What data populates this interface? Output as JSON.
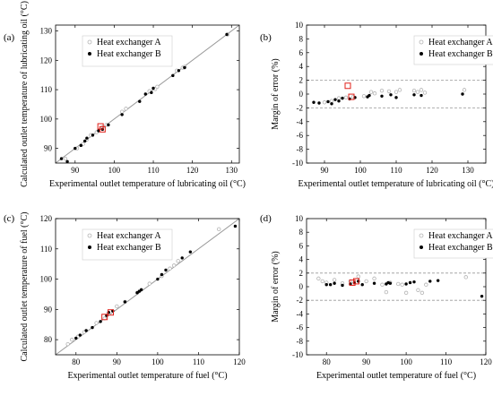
{
  "colors": {
    "series_a": "#b3b3b3",
    "series_b": "#000000",
    "highlight": "#e0201a",
    "reference": "#999999"
  },
  "chart_data": [
    {
      "type": "scatter",
      "panel_label": "(a)",
      "xlabel": "Experimental outlet temperature of lubricating oil (°C)",
      "ylabel": "Calculated outlet temperature of lubricating oil (°C)",
      "xlim": [
        85,
        132
      ],
      "ylim": [
        85,
        132
      ],
      "xticks": [
        90,
        100,
        110,
        120,
        130
      ],
      "yticks": [
        90,
        100,
        110,
        120,
        130
      ],
      "grid": false,
      "legend": "top-left",
      "reference_line": "y=x",
      "series": [
        {
          "name": "Heat exchanger A",
          "marker": "open-circle",
          "points": [
            [
              87.5,
              86.5
            ],
            [
              90.5,
              90
            ],
            [
              92,
              91.5
            ],
            [
              93,
              93
            ],
            [
              94,
              94.5
            ],
            [
              95.5,
              95.5
            ],
            [
              97,
              97.2
            ],
            [
              98,
              98
            ],
            [
              102,
              102.5
            ],
            [
              103,
              103.5
            ],
            [
              109,
              109.5
            ],
            [
              110.5,
              110.2
            ],
            [
              111,
              111
            ],
            [
              116,
              116.5
            ],
            [
              117.5,
              117.5
            ],
            [
              118,
              117.8
            ],
            [
              129,
              128.8
            ]
          ]
        },
        {
          "name": "Heat exchanger B",
          "marker": "filled-circle",
          "points": [
            [
              86.5,
              86.5
            ],
            [
              88,
              85.5
            ],
            [
              90,
              90
            ],
            [
              91.5,
              91
            ],
            [
              92.5,
              92.5
            ],
            [
              93,
              93.5
            ],
            [
              94.5,
              94.5
            ],
            [
              96,
              96
            ],
            [
              97,
              96.5
            ],
            [
              98.5,
              98
            ],
            [
              102,
              101.5
            ],
            [
              106.5,
              106
            ],
            [
              108,
              108.5
            ],
            [
              109.5,
              109
            ],
            [
              110,
              110.5
            ],
            [
              115,
              114.8
            ],
            [
              116.5,
              116.5
            ],
            [
              118,
              117.5
            ],
            [
              128.8,
              128.8
            ]
          ]
        }
      ],
      "highlights": [
        [
          96.5,
          97.5
        ],
        [
          97,
          96.5
        ]
      ]
    },
    {
      "type": "scatter",
      "panel_label": "(b)",
      "xlabel": "Experimental outlet temperature of lubricating oil (°C)",
      "ylabel": "Margin of error (%)",
      "xlim": [
        85,
        135
      ],
      "ylim": [
        -10,
        10
      ],
      "xticks": [
        90,
        100,
        110,
        120,
        130
      ],
      "yticks": [
        -10,
        -8,
        -6,
        -4,
        -2,
        0,
        2,
        4,
        6,
        8,
        10
      ],
      "grid": false,
      "legend": "top-right",
      "reference_lines": [
        2,
        -2
      ],
      "series": [
        {
          "name": "Heat exchanger A",
          "marker": "open-circle",
          "points": [
            [
              90,
              -1.2
            ],
            [
              92,
              -1
            ],
            [
              94,
              -0.6
            ],
            [
              96,
              -0.5
            ],
            [
              98,
              -0.4
            ],
            [
              101,
              -0.3
            ],
            [
              103,
              0.3
            ],
            [
              104,
              0.1
            ],
            [
              106,
              0.5
            ],
            [
              108,
              0.4
            ],
            [
              110,
              0.3
            ],
            [
              111,
              0.6
            ],
            [
              115,
              0.5
            ],
            [
              116,
              0.3
            ],
            [
              117,
              0.6
            ],
            [
              118,
              0.2
            ],
            [
              129,
              0.6
            ]
          ]
        },
        {
          "name": "Heat exchanger B",
          "marker": "filled-circle",
          "points": [
            [
              87,
              -1.2
            ],
            [
              88.5,
              -1.3
            ],
            [
              91,
              -1.1
            ],
            [
              92,
              -1.4
            ],
            [
              93,
              -0.8
            ],
            [
              94,
              -1
            ],
            [
              95,
              -0.6
            ],
            [
              97,
              -0.7
            ],
            [
              98.5,
              -0.5
            ],
            [
              102,
              -0.4
            ],
            [
              102.5,
              -0.2
            ],
            [
              106,
              -0.3
            ],
            [
              108.5,
              -0.1
            ],
            [
              110,
              -0.5
            ],
            [
              115,
              -0.1
            ],
            [
              117,
              -0.2
            ],
            [
              128.5,
              0
            ]
          ]
        }
      ],
      "highlights": [
        [
          96.5,
          1.2
        ],
        [
          97.5,
          -0.4
        ]
      ]
    },
    {
      "type": "scatter",
      "panel_label": "(c)",
      "xlabel": "Experimental outlet temperature of fuel (°C)",
      "ylabel": "Calculated outlet temperature of fuel (°C)",
      "xlim": [
        75,
        120
      ],
      "ylim": [
        75,
        120
      ],
      "xticks": [
        80,
        90,
        100,
        110,
        120
      ],
      "yticks": [
        80,
        90,
        100,
        110,
        120
      ],
      "grid": false,
      "legend": "top-left",
      "reference_line": "y=x",
      "series": [
        {
          "name": "Heat exchanger A",
          "marker": "open-circle",
          "points": [
            [
              78,
              78.5
            ],
            [
              79,
              80
            ],
            [
              80.5,
              81
            ],
            [
              82,
              82.5
            ],
            [
              85,
              85.5
            ],
            [
              87,
              87
            ],
            [
              88,
              88.5
            ],
            [
              90,
              91
            ],
            [
              92,
              92.5
            ],
            [
              95,
              95.5
            ],
            [
              98,
              98.5
            ],
            [
              101,
              101
            ],
            [
              103,
              103.5
            ],
            [
              104,
              104.5
            ],
            [
              105,
              106
            ],
            [
              115,
              116.5
            ]
          ]
        },
        {
          "name": "Heat exchanger B",
          "marker": "filled-circle",
          "points": [
            [
              80,
              80.5
            ],
            [
              81,
              81.5
            ],
            [
              82.5,
              83
            ],
            [
              84,
              84
            ],
            [
              86,
              86
            ],
            [
              87.5,
              88
            ],
            [
              88,
              89
            ],
            [
              89,
              89.5
            ],
            [
              92,
              92.5
            ],
            [
              95,
              95.5
            ],
            [
              95.5,
              96
            ],
            [
              96,
              96.5
            ],
            [
              100,
              100
            ],
            [
              101,
              101.5
            ],
            [
              102,
              103
            ],
            [
              106,
              107
            ],
            [
              108,
              109
            ],
            [
              119,
              117.5
            ]
          ]
        }
      ],
      "highlights": [
        [
          87,
          87.5
        ],
        [
          88.5,
          89
        ]
      ]
    },
    {
      "type": "scatter",
      "panel_label": "(d)",
      "xlabel": "Experimental outlet temperature of fuel (°C)",
      "ylabel": "Margin of error (%)",
      "xlim": [
        75,
        120
      ],
      "ylim": [
        -10,
        10
      ],
      "xticks": [
        80,
        90,
        100,
        110,
        120
      ],
      "yticks": [
        -10,
        -8,
        -6,
        -4,
        -2,
        0,
        2,
        4,
        6,
        8,
        10
      ],
      "grid": false,
      "legend": "top-right",
      "reference_lines": [
        2,
        -2
      ],
      "series": [
        {
          "name": "Heat exchanger A",
          "marker": "open-circle",
          "points": [
            [
              78,
              1.2
            ],
            [
              79,
              0.8
            ],
            [
              80,
              0.6
            ],
            [
              82,
              1
            ],
            [
              84,
              0.5
            ],
            [
              86,
              0.8
            ],
            [
              88,
              1.5
            ],
            [
              90,
              0.8
            ],
            [
              92,
              1.2
            ],
            [
              94,
              0.3
            ],
            [
              95,
              -0.8
            ],
            [
              96,
              0.6
            ],
            [
              98,
              0.4
            ],
            [
              99,
              0.3
            ],
            [
              100,
              -0.9
            ],
            [
              103,
              -0.5
            ],
            [
              104,
              -0.9
            ],
            [
              105,
              0.3
            ],
            [
              115,
              1.4
            ]
          ]
        },
        {
          "name": "Heat exchanger B",
          "marker": "filled-circle",
          "points": [
            [
              80,
              0.3
            ],
            [
              81,
              0.3
            ],
            [
              82,
              0.5
            ],
            [
              84,
              0.2
            ],
            [
              86,
              0.4
            ],
            [
              87,
              0.6
            ],
            [
              88,
              0.8
            ],
            [
              89,
              0.3
            ],
            [
              92,
              0.5
            ],
            [
              95,
              0.4
            ],
            [
              95.5,
              0.6
            ],
            [
              96,
              0.5
            ],
            [
              100,
              0.4
            ],
            [
              101,
              0.6
            ],
            [
              102,
              0.7
            ],
            [
              106,
              0.8
            ],
            [
              108,
              0.9
            ],
            [
              119,
              -1.4
            ]
          ]
        }
      ],
      "highlights": [
        [
          86.5,
          0.6
        ],
        [
          87.5,
          0.8
        ]
      ]
    }
  ]
}
